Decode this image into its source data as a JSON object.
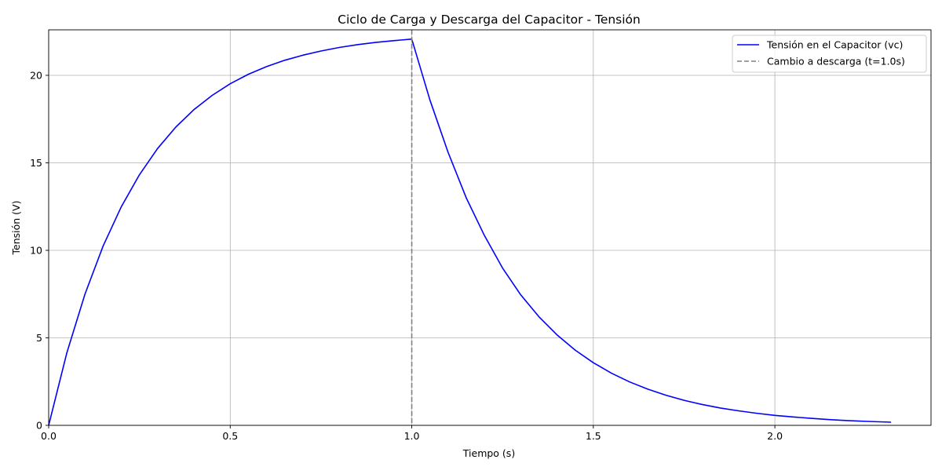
{
  "chart_data": {
    "type": "line",
    "title": "Ciclo de Carga y Descarga del Capacitor - Tensión",
    "xlabel": "Tiempo (s)",
    "ylabel": "Tensión (V)",
    "xlim": [
      0,
      2.43
    ],
    "ylim": [
      0,
      22.6
    ],
    "x_ticks": [
      0,
      0.5,
      1,
      1.5,
      2
    ],
    "x_tick_labels": [
      "0.0",
      "0.5",
      "1.0",
      "1.5",
      "2.0"
    ],
    "y_ticks": [
      0,
      5,
      10,
      15,
      20
    ],
    "y_tick_labels": [
      "0",
      "5",
      "10",
      "15",
      "20"
    ],
    "grid": true,
    "legend_position": "top-right",
    "series": [
      {
        "name": "Tensión en el Capacitor (vc)",
        "color": "#0000ff",
        "line_style": "solid",
        "x": [
          0,
          0.05,
          0.1,
          0.15,
          0.2,
          0.25,
          0.3,
          0.35,
          0.4,
          0.45,
          0.5,
          0.55,
          0.6,
          0.65,
          0.7,
          0.75,
          0.8,
          0.85,
          0.9,
          0.95,
          1.0,
          1.05,
          1.1,
          1.15,
          1.2,
          1.25,
          1.3,
          1.35,
          1.4,
          1.45,
          1.5,
          1.55,
          1.6,
          1.65,
          1.7,
          1.75,
          1.8,
          1.85,
          1.9,
          1.95,
          2.0,
          2.05,
          2.1,
          2.15,
          2.2,
          2.25,
          2.32
        ],
        "y": [
          0.0,
          4.14,
          7.5,
          10.25,
          12.49,
          14.32,
          15.82,
          17.04,
          18.04,
          18.85,
          19.52,
          20.06,
          20.5,
          20.86,
          21.15,
          21.39,
          21.59,
          21.75,
          21.88,
          21.98,
          22.07,
          18.59,
          15.6,
          13.0,
          10.85,
          8.99,
          7.46,
          6.21,
          5.17,
          4.3,
          3.58,
          2.98,
          2.48,
          2.07,
          1.72,
          1.43,
          1.19,
          0.99,
          0.83,
          0.69,
          0.57,
          0.48,
          0.4,
          0.33,
          0.27,
          0.23,
          0.18
        ]
      }
    ],
    "vlines": [
      {
        "name": "Cambio a descarga (t=1.0s)",
        "x": 1.0,
        "color": "#808080",
        "line_style": "dashed"
      }
    ]
  }
}
